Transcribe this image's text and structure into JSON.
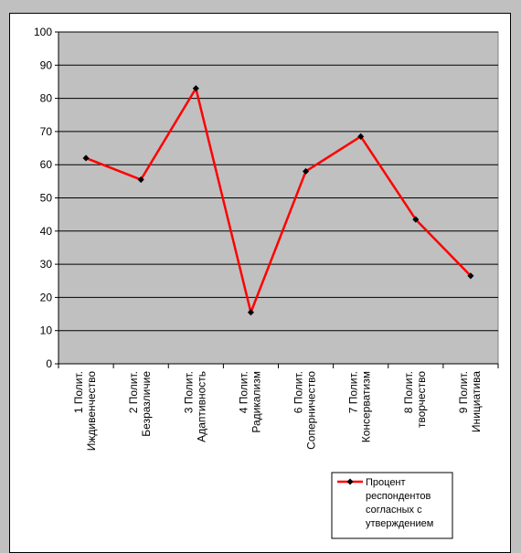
{
  "chart_data": {
    "type": "line",
    "categories": [
      [
        "1 Полит.",
        "Иждивенчество"
      ],
      [
        "2 Полит.",
        "Безразличие"
      ],
      [
        "3 Полит.",
        "Адаптивность"
      ],
      [
        "4 Полит.",
        "Радикализм"
      ],
      [
        "6 Полит.",
        "Соперничество"
      ],
      [
        "7 Полит.",
        "Консерватизм"
      ],
      [
        "8 Полит.",
        "творчество"
      ],
      [
        "9 Полит.",
        "Инициатива"
      ]
    ],
    "series": [
      {
        "name": "Процент респондентов согласных с утверждением",
        "name_lines": [
          "Процент",
          "респондентов",
          "согласных с",
          "утверждением"
        ],
        "values": [
          62,
          55.5,
          83,
          15.5,
          58,
          68.5,
          43.5,
          26.5
        ],
        "color": "#ff0000"
      }
    ],
    "ylim": [
      0,
      100
    ],
    "yticks": [
      0,
      10,
      20,
      30,
      40,
      50,
      60,
      70,
      80,
      90,
      100
    ],
    "grid": true,
    "legend": "bottom-right",
    "colors": {
      "plot_background": "#c0c0c0",
      "gridline": "#000000",
      "marker": "#000000"
    }
  }
}
